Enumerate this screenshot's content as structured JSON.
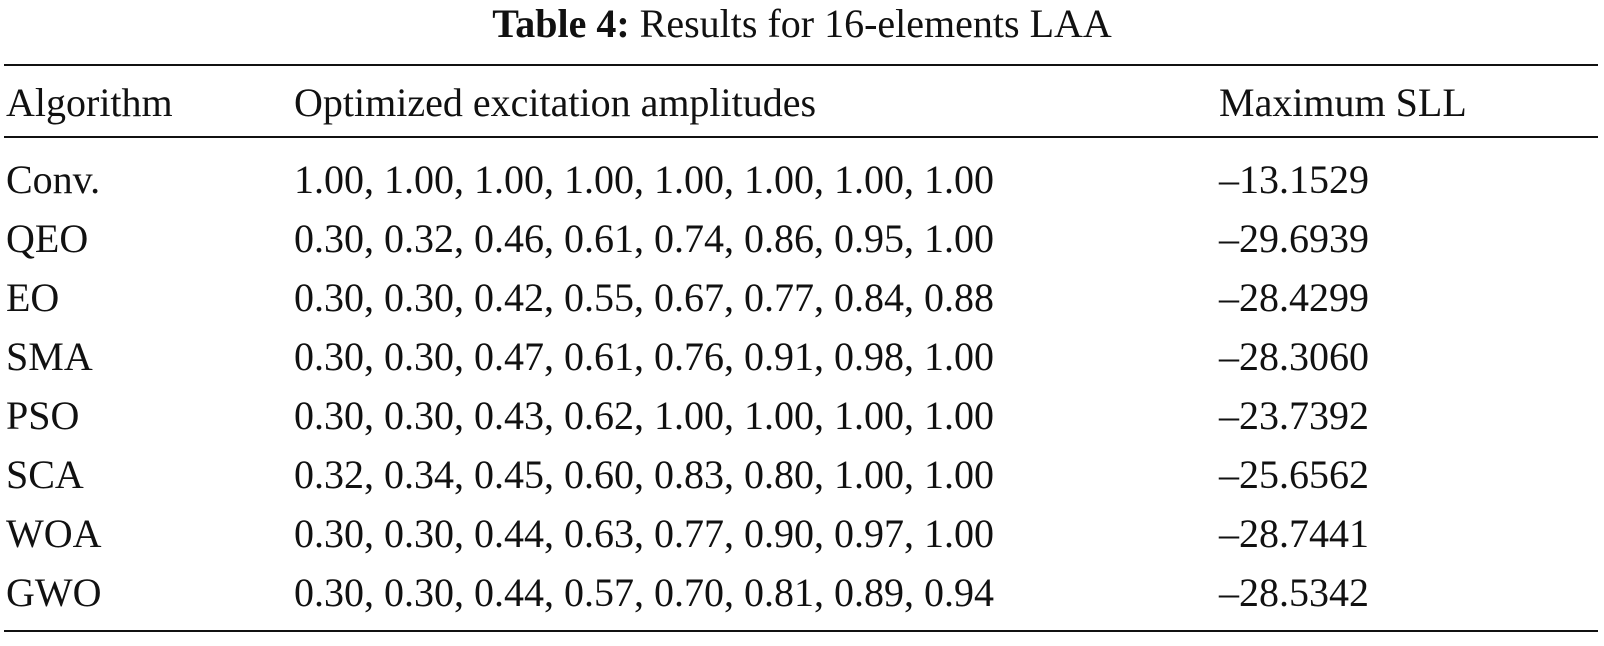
{
  "caption": {
    "label": "Table 4:",
    "title": "Results for 16-elements LAA"
  },
  "table": {
    "headers": [
      "Algorithm",
      "Optimized excitation amplitudes",
      "Maximum SLL"
    ],
    "rows": [
      {
        "algorithm": "Conv.",
        "amplitudes": "1.00, 1.00, 1.00, 1.00, 1.00, 1.00, 1.00, 1.00",
        "sll": "–13.1529",
        "bold": false
      },
      {
        "algorithm": "QEO",
        "amplitudes": "0.30, 0.32, 0.46, 0.61, 0.74, 0.86, 0.95, 1.00",
        "sll": "–29.6939",
        "bold": true
      },
      {
        "algorithm": "EO",
        "amplitudes": "0.30, 0.30, 0.42, 0.55, 0.67, 0.77, 0.84, 0.88",
        "sll": "–28.4299",
        "bold": false
      },
      {
        "algorithm": "SMA",
        "amplitudes": "0.30, 0.30, 0.47, 0.61, 0.76, 0.91, 0.98, 1.00",
        "sll": "–28.3060",
        "bold": false
      },
      {
        "algorithm": "PSO",
        "amplitudes": "0.30, 0.30, 0.43, 0.62, 1.00, 1.00, 1.00, 1.00",
        "sll": "–23.7392",
        "bold": false
      },
      {
        "algorithm": "SCA",
        "amplitudes": "0.32, 0.34, 0.45, 0.60, 0.83, 0.80, 1.00, 1.00",
        "sll": "–25.6562",
        "bold": false
      },
      {
        "algorithm": "WOA",
        "amplitudes": "0.30, 0.30, 0.44, 0.63, 0.77, 0.90, 0.97, 1.00",
        "sll": "–28.7441",
        "bold": false
      },
      {
        "algorithm": "GWO",
        "amplitudes": "0.30, 0.30, 0.44, 0.57, 0.70, 0.81, 0.89, 0.94",
        "sll": "–28.5342",
        "bold": false
      }
    ]
  }
}
